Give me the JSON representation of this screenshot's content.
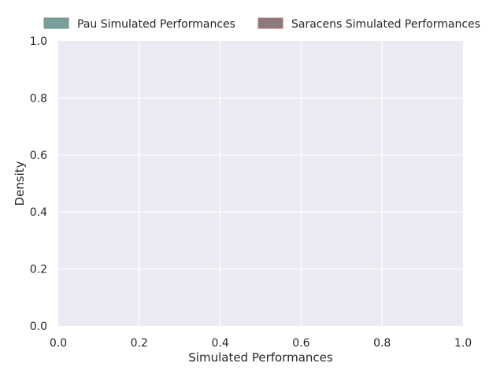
{
  "chart_data": {
    "type": "area",
    "title": "",
    "xlabel": "Simulated Performances",
    "ylabel": "Density",
    "xlim": [
      0.0,
      1.0
    ],
    "ylim": [
      0.0,
      1.0
    ],
    "xticks": [
      "0.0",
      "0.2",
      "0.4",
      "0.6",
      "0.8",
      "1.0"
    ],
    "yticks": [
      "0.0",
      "0.2",
      "0.4",
      "0.6",
      "0.8",
      "1.0"
    ],
    "grid": true,
    "legend_position": "top",
    "series": [
      {
        "name": "Pau Simulated Performances",
        "color": "#7a9e9a",
        "values": []
      },
      {
        "name": "Saracens Simulated Performances",
        "color": "#8c7b7b",
        "values": []
      }
    ],
    "colors": {
      "plot_background": "#eaeaf2",
      "grid": "#ffffff"
    }
  }
}
